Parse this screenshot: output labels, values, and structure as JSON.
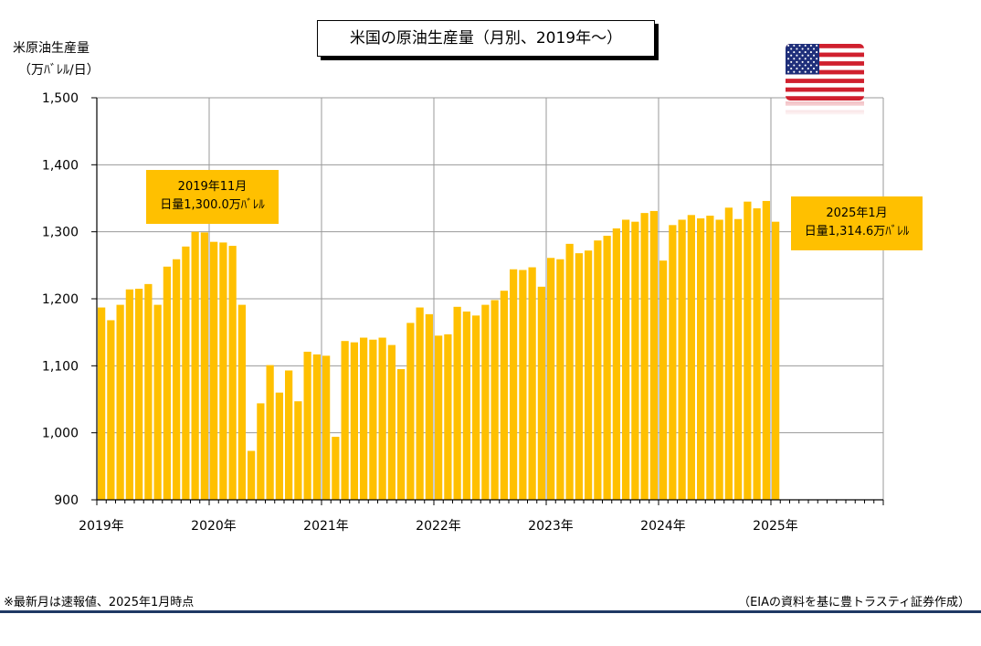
{
  "chart_data": {
    "type": "bar",
    "title": "米国の原油生産量（月別、2019年～）",
    "ylabel_line1": "米原油生産量",
    "ylabel_line2": "（万ﾊﾞﾚﾙ/日）",
    "ylim": [
      900,
      1500
    ],
    "yticks": [
      900,
      1000,
      1100,
      1200,
      1300,
      1400,
      1500
    ],
    "ytick_labels": [
      "900",
      "1,000",
      "1,100",
      "1,200",
      "1,300",
      "1,400",
      "1,500"
    ],
    "xlabels": [
      "2019年",
      "2020年",
      "2021年",
      "2022年",
      "2023年",
      "2024年",
      "2025年"
    ],
    "total_slots": 84,
    "grid": true,
    "bar_color": "#ffc000",
    "months": [
      "2019-01",
      "2019-02",
      "2019-03",
      "2019-04",
      "2019-05",
      "2019-06",
      "2019-07",
      "2019-08",
      "2019-09",
      "2019-10",
      "2019-11",
      "2019-12",
      "2020-01",
      "2020-02",
      "2020-03",
      "2020-04",
      "2020-05",
      "2020-06",
      "2020-07",
      "2020-08",
      "2020-09",
      "2020-10",
      "2020-11",
      "2020-12",
      "2021-01",
      "2021-02",
      "2021-03",
      "2021-04",
      "2021-05",
      "2021-06",
      "2021-07",
      "2021-08",
      "2021-09",
      "2021-10",
      "2021-11",
      "2021-12",
      "2022-01",
      "2022-02",
      "2022-03",
      "2022-04",
      "2022-05",
      "2022-06",
      "2022-07",
      "2022-08",
      "2022-09",
      "2022-10",
      "2022-11",
      "2022-12",
      "2023-01",
      "2023-02",
      "2023-03",
      "2023-04",
      "2023-05",
      "2023-06",
      "2023-07",
      "2023-08",
      "2023-09",
      "2023-10",
      "2023-11",
      "2023-12",
      "2024-01",
      "2024-02",
      "2024-03",
      "2024-04",
      "2024-05",
      "2024-06",
      "2024-07",
      "2024-08",
      "2024-09",
      "2024-10",
      "2024-11",
      "2024-12",
      "2025-01"
    ],
    "values": [
      1187,
      1168,
      1191,
      1214,
      1215,
      1222,
      1191,
      1248,
      1259,
      1278,
      1300,
      1299,
      1285,
      1284,
      1279,
      1191,
      973,
      1044,
      1101,
      1060,
      1093,
      1047,
      1121,
      1117,
      1115,
      994,
      1137,
      1135,
      1142,
      1139,
      1142,
      1131,
      1095,
      1164,
      1187,
      1177,
      1145,
      1147,
      1188,
      1181,
      1175,
      1191,
      1198,
      1212,
      1244,
      1243,
      1247,
      1218,
      1261,
      1259,
      1282,
      1268,
      1272,
      1287,
      1294,
      1305,
      1318,
      1315,
      1328,
      1331,
      1257,
      1310,
      1318,
      1325,
      1320,
      1324,
      1318,
      1336,
      1319,
      1345,
      1335,
      1346,
      1315
    ],
    "annotations": [
      {
        "month": "2019-11",
        "line1": "2019年11月",
        "line2": "日量1,300.0万ﾊﾞﾚﾙ"
      },
      {
        "month": "2025-01",
        "line1": "2025年1月",
        "line2": "日量1,314.6万ﾊﾞﾚﾙ"
      }
    ]
  },
  "footnote": "※最新月は速報値、2025年1月時点",
  "source": "（EIAの資料を基に豊トラスティ証券作成）",
  "flag_icon": "us-flag-icon",
  "accent_color": "#1f3864"
}
